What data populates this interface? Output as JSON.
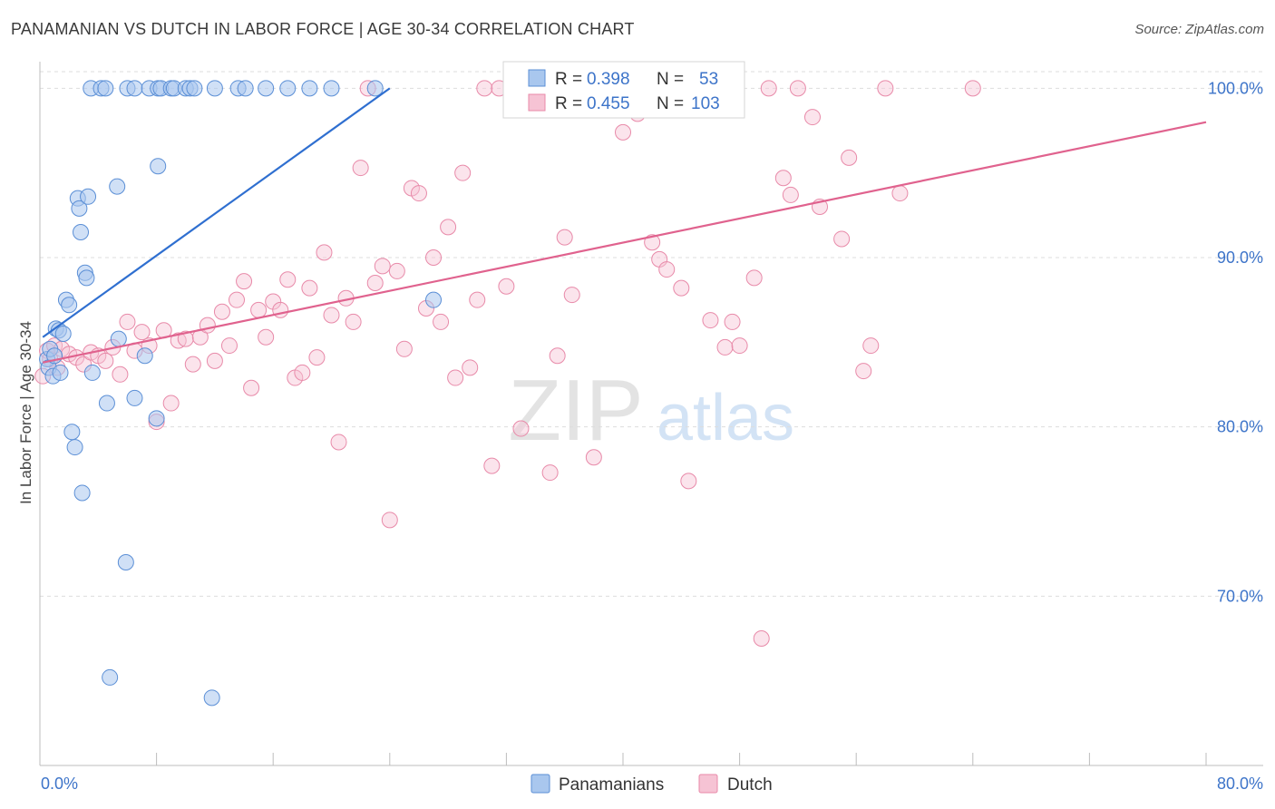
{
  "title": "PANAMANIAN VS DUTCH IN LABOR FORCE | AGE 30-34 CORRELATION CHART",
  "source": "Source: ZipAtlas.com",
  "watermark": {
    "zip": "ZIP",
    "atlas": "atlas"
  },
  "colors": {
    "blue_fill": "#a9c7ee",
    "blue_stroke": "#5b8fd6",
    "blue_line": "#2f6fd0",
    "pink_fill": "#f6c3d4",
    "pink_stroke": "#e88aa9",
    "pink_line": "#e0628e",
    "tick_label": "#3d74c9",
    "grid": "#dddddd"
  },
  "legend": {
    "r_label": "R =",
    "n_label": "N =",
    "rows": [
      {
        "r_value": "0.398",
        "n_value": "53"
      },
      {
        "r_value": "0.455",
        "n_value": "103"
      }
    ]
  },
  "chart_data": {
    "type": "scatter",
    "title": "PANAMANIAN VS DUTCH IN LABOR FORCE | AGE 30-34 CORRELATION CHART",
    "xlabel": "",
    "ylabel": "In Labor Force | Age 30-34",
    "xlim": [
      0,
      80
    ],
    "ylim": [
      60,
      102
    ],
    "x_tick_labels": [
      "0.0%",
      "80.0%"
    ],
    "y_ticks": [
      70,
      80,
      90,
      100
    ],
    "y_tick_labels": [
      "70.0%",
      "80.0%",
      "90.0%",
      "100.0%"
    ],
    "grid": true,
    "legend_position": "top-center",
    "series": [
      {
        "name": "Panamanians",
        "r": 0.398,
        "n": 53,
        "trend": {
          "x": [
            0.2,
            24
          ],
          "y": [
            85.3,
            100
          ]
        },
        "points": [
          [
            0.5,
            84
          ],
          [
            0.6,
            83.5
          ],
          [
            0.7,
            84.6
          ],
          [
            0.9,
            83
          ],
          [
            1.0,
            84.2
          ],
          [
            1.1,
            85.8
          ],
          [
            1.3,
            85.7
          ],
          [
            1.4,
            83.2
          ],
          [
            1.6,
            85.5
          ],
          [
            1.8,
            87.5
          ],
          [
            2.0,
            87.2
          ],
          [
            2.2,
            79.7
          ],
          [
            2.4,
            78.8
          ],
          [
            2.6,
            93.5
          ],
          [
            2.7,
            92.9
          ],
          [
            2.8,
            91.5
          ],
          [
            3.1,
            89.1
          ],
          [
            3.2,
            88.8
          ],
          [
            3.3,
            93.6
          ],
          [
            3.5,
            100
          ],
          [
            4.2,
            100
          ],
          [
            4.5,
            100
          ],
          [
            5.3,
            94.2
          ],
          [
            6.0,
            100
          ],
          [
            6.5,
            100
          ],
          [
            7.5,
            100
          ],
          [
            8.1,
            100
          ],
          [
            8.3,
            100
          ],
          [
            9.0,
            100
          ],
          [
            9.2,
            100
          ],
          [
            10.0,
            100
          ],
          [
            10.3,
            100
          ],
          [
            10.6,
            100
          ],
          [
            12.0,
            100
          ],
          [
            13.6,
            100
          ],
          [
            14.1,
            100
          ],
          [
            15.5,
            100
          ],
          [
            17.0,
            100
          ],
          [
            18.5,
            100
          ],
          [
            20.0,
            100
          ],
          [
            23.0,
            100
          ],
          [
            27.0,
            87.5
          ],
          [
            5.4,
            85.2
          ],
          [
            4.6,
            81.4
          ],
          [
            6.5,
            81.7
          ],
          [
            7.2,
            84.2
          ],
          [
            8.0,
            80.5
          ],
          [
            8.1,
            95.4
          ],
          [
            3.6,
            83.2
          ],
          [
            2.9,
            76.1
          ],
          [
            5.9,
            72
          ],
          [
            4.8,
            65.2
          ],
          [
            11.8,
            64.0
          ]
        ]
      },
      {
        "name": "Dutch",
        "r": 0.455,
        "n": 103,
        "trend": {
          "x": [
            0.2,
            80
          ],
          "y": [
            83.8,
            98
          ]
        },
        "points": [
          [
            0.2,
            83
          ],
          [
            0.5,
            84.5
          ],
          [
            0.7,
            84
          ],
          [
            1.0,
            84.8
          ],
          [
            1.2,
            83.5
          ],
          [
            1.5,
            84.6
          ],
          [
            2.0,
            84.3
          ],
          [
            2.5,
            84.1
          ],
          [
            3.0,
            83.7
          ],
          [
            3.5,
            84.4
          ],
          [
            4.0,
            84.2
          ],
          [
            4.5,
            83.9
          ],
          [
            5.0,
            84.7
          ],
          [
            5.5,
            83.1
          ],
          [
            6.0,
            86.2
          ],
          [
            6.5,
            84.5
          ],
          [
            7.0,
            85.6
          ],
          [
            7.5,
            84.8
          ],
          [
            8.0,
            80.3
          ],
          [
            8.5,
            85.7
          ],
          [
            9.0,
            81.4
          ],
          [
            9.5,
            85.1
          ],
          [
            10.0,
            85.2
          ],
          [
            10.5,
            83.7
          ],
          [
            11.0,
            85.3
          ],
          [
            11.5,
            86.0
          ],
          [
            12.0,
            83.9
          ],
          [
            12.5,
            86.8
          ],
          [
            13.0,
            84.8
          ],
          [
            13.5,
            87.5
          ],
          [
            14.0,
            88.6
          ],
          [
            14.5,
            82.3
          ],
          [
            15.0,
            86.9
          ],
          [
            15.5,
            85.3
          ],
          [
            16.0,
            87.4
          ],
          [
            16.5,
            86.9
          ],
          [
            17.0,
            88.7
          ],
          [
            17.5,
            82.9
          ],
          [
            18.0,
            83.2
          ],
          [
            18.5,
            88.2
          ],
          [
            19.0,
            84.1
          ],
          [
            19.5,
            90.3
          ],
          [
            20.0,
            86.6
          ],
          [
            20.5,
            79.1
          ],
          [
            21.0,
            87.6
          ],
          [
            21.5,
            86.2
          ],
          [
            22.0,
            95.3
          ],
          [
            22.5,
            100
          ],
          [
            23.0,
            88.5
          ],
          [
            23.5,
            89.5
          ],
          [
            24.0,
            74.5
          ],
          [
            24.5,
            89.2
          ],
          [
            25.0,
            84.6
          ],
          [
            25.5,
            94.1
          ],
          [
            26.0,
            93.8
          ],
          [
            26.5,
            87.0
          ],
          [
            27.0,
            90.0
          ],
          [
            27.5,
            86.2
          ],
          [
            28.0,
            91.8
          ],
          [
            28.5,
            82.9
          ],
          [
            29.0,
            95.0
          ],
          [
            29.5,
            83.5
          ],
          [
            30.0,
            87.5
          ],
          [
            30.5,
            100
          ],
          [
            31.0,
            77.7
          ],
          [
            31.5,
            100
          ],
          [
            32.0,
            88.3
          ],
          [
            33.0,
            79.9
          ],
          [
            34.0,
            100
          ],
          [
            35.0,
            77.3
          ],
          [
            35.5,
            84.2
          ],
          [
            36.0,
            91.2
          ],
          [
            36.5,
            87.8
          ],
          [
            37.0,
            100
          ],
          [
            38.0,
            78.2
          ],
          [
            39.0,
            100
          ],
          [
            40.0,
            97.4
          ],
          [
            41.0,
            98.5
          ],
          [
            42.0,
            90.9
          ],
          [
            42.5,
            89.9
          ],
          [
            43.0,
            89.3
          ],
          [
            44.0,
            88.2
          ],
          [
            44.5,
            76.8
          ],
          [
            45.0,
            100
          ],
          [
            46.0,
            86.3
          ],
          [
            47.0,
            84.7
          ],
          [
            47.5,
            86.2
          ],
          [
            48.0,
            84.8
          ],
          [
            49.0,
            88.8
          ],
          [
            49.5,
            67.5
          ],
          [
            50.0,
            100
          ],
          [
            51.0,
            94.7
          ],
          [
            51.5,
            93.7
          ],
          [
            52.0,
            100
          ],
          [
            53.0,
            98.3
          ],
          [
            53.5,
            93.0
          ],
          [
            55.0,
            91.1
          ],
          [
            55.5,
            95.9
          ],
          [
            56.5,
            83.3
          ],
          [
            57.0,
            84.8
          ],
          [
            58.0,
            100
          ],
          [
            59.0,
            93.8
          ],
          [
            64.0,
            100
          ]
        ]
      }
    ]
  },
  "series_legend": [
    {
      "label": "Panamanians"
    },
    {
      "label": "Dutch"
    }
  ]
}
